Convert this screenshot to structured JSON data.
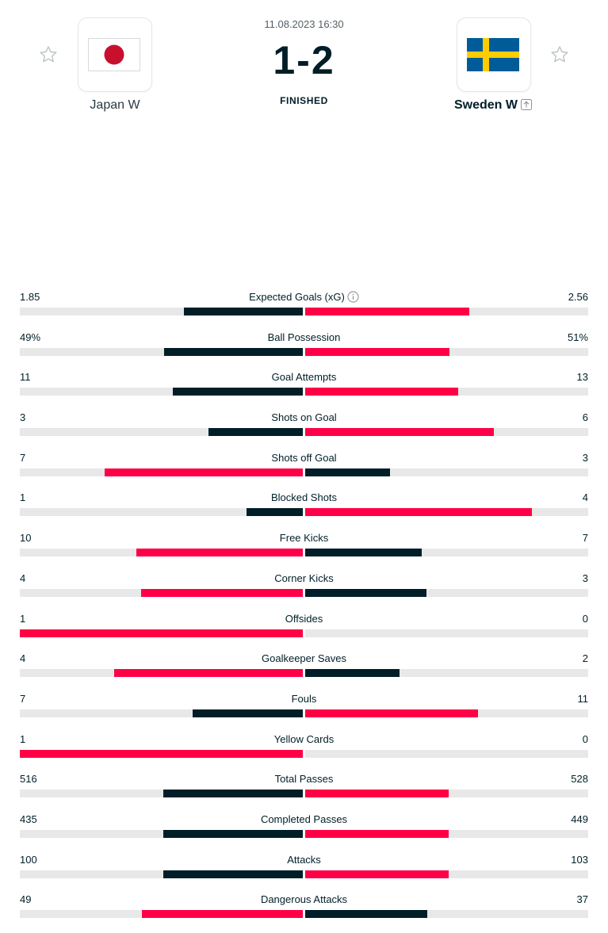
{
  "match": {
    "datetime": "11.08.2023 16:30",
    "score": "1-2",
    "status": "FINISHED",
    "home": {
      "name": "Japan W",
      "flag_icon": "japan-flag"
    },
    "away": {
      "name": "Sweden W",
      "flag_icon": "sweden-flag"
    }
  },
  "colors": {
    "winner": "#ff0046",
    "loser": "#001e28",
    "track": "#e8e8e8"
  },
  "stats": [
    {
      "category": "Expected Goals (xG)",
      "home": "1.85",
      "away": "2.56",
      "home_value": 1.85,
      "away_value": 2.56,
      "info": true
    },
    {
      "category": "Ball Possession",
      "home": "49%",
      "away": "51%",
      "home_value": 49,
      "away_value": 51
    },
    {
      "category": "Goal Attempts",
      "home": "11",
      "away": "13",
      "home_value": 11,
      "away_value": 13
    },
    {
      "category": "Shots on Goal",
      "home": "3",
      "away": "6",
      "home_value": 3,
      "away_value": 6
    },
    {
      "category": "Shots off Goal",
      "home": "7",
      "away": "3",
      "home_value": 7,
      "away_value": 3
    },
    {
      "category": "Blocked Shots",
      "home": "1",
      "away": "4",
      "home_value": 1,
      "away_value": 4
    },
    {
      "category": "Free Kicks",
      "home": "10",
      "away": "7",
      "home_value": 10,
      "away_value": 7
    },
    {
      "category": "Corner Kicks",
      "home": "4",
      "away": "3",
      "home_value": 4,
      "away_value": 3
    },
    {
      "category": "Offsides",
      "home": "1",
      "away": "0",
      "home_value": 1,
      "away_value": 0
    },
    {
      "category": "Goalkeeper Saves",
      "home": "4",
      "away": "2",
      "home_value": 4,
      "away_value": 2
    },
    {
      "category": "Fouls",
      "home": "7",
      "away": "11",
      "home_value": 7,
      "away_value": 11
    },
    {
      "category": "Yellow Cards",
      "home": "1",
      "away": "0",
      "home_value": 1,
      "away_value": 0
    },
    {
      "category": "Total Passes",
      "home": "516",
      "away": "528",
      "home_value": 516,
      "away_value": 528
    },
    {
      "category": "Completed Passes",
      "home": "435",
      "away": "449",
      "home_value": 435,
      "away_value": 449
    },
    {
      "category": "Attacks",
      "home": "100",
      "away": "103",
      "home_value": 100,
      "away_value": 103
    },
    {
      "category": "Dangerous Attacks",
      "home": "49",
      "away": "37",
      "home_value": 49,
      "away_value": 37
    }
  ]
}
